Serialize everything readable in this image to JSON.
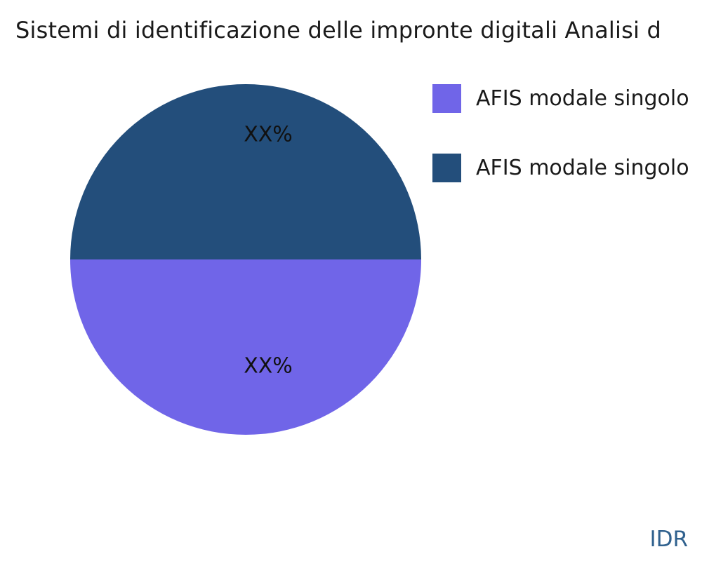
{
  "title": "Sistemi di identificazione delle impronte digitali Analisi d",
  "watermark": "IDR",
  "colors": {
    "background": "#ffffff",
    "title_text": "#1a1a1a",
    "slice_label_text": "#111111",
    "watermark_text": "#30618E",
    "slice_purple": "#7065E8",
    "slice_navy": "#234E7B"
  },
  "chart_data": {
    "type": "pie",
    "title": "Sistemi di identificazione delle impronte digitali Analisi d",
    "legend_position": "right-top",
    "slices": [
      {
        "name": "AFIS modale singolo",
        "value": 50,
        "display": "XX%",
        "color": "#7065E8",
        "position": "bottom-half"
      },
      {
        "name": "AFIS modale singolo",
        "value": 50,
        "display": "XX%",
        "color": "#234E7B",
        "position": "top-half"
      }
    ]
  }
}
